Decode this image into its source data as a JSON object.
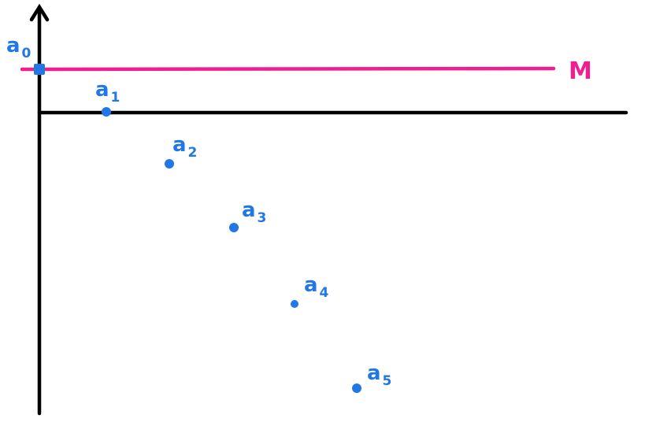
{
  "colors": {
    "axes": "#000000",
    "points": "#1f77e8",
    "bound_line": "#ef1f8f"
  },
  "bound_line": {
    "label": "M"
  },
  "points": [
    {
      "base": "a",
      "index": "0"
    },
    {
      "base": "a",
      "index": "1"
    },
    {
      "base": "a",
      "index": "2"
    },
    {
      "base": "a",
      "index": "3"
    },
    {
      "base": "a",
      "index": "4"
    },
    {
      "base": "a",
      "index": "5"
    }
  ]
}
